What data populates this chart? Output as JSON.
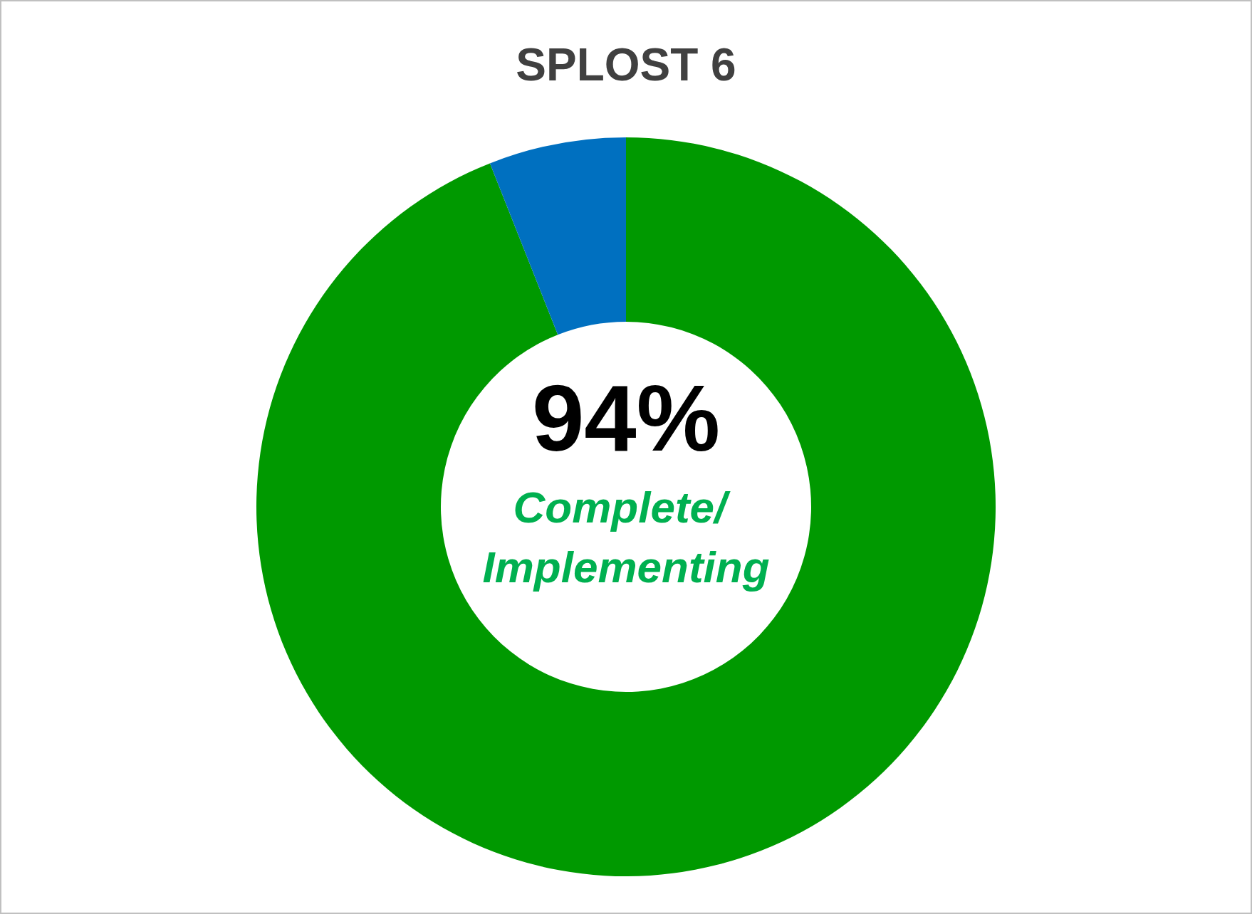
{
  "chart_data": {
    "type": "donut",
    "title": "SPLOST 6",
    "categories": [
      null,
      null
    ],
    "values": [
      94,
      6
    ],
    "colors": [
      "#009900",
      "#0070c0"
    ],
    "annotations": [
      "94%",
      "Complete/ Implementing"
    ]
  }
}
